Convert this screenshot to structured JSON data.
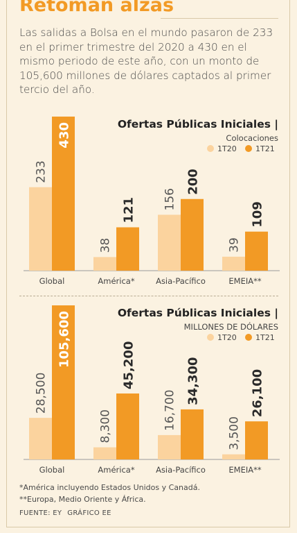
{
  "header": {
    "title": "Retoman alzas",
    "description": "Las salidas a Bolsa en el mundo pasaron de 233 en el primer trimestre del 2020 a 430 en el mismo periodo de este año, con un monto de 105,600 millones de dólares captados al primer tercio del año."
  },
  "colors": {
    "light": "#fbd39e",
    "dark": "#f29a25",
    "axis": "#9a9a9a",
    "text": "#3a3a3a"
  },
  "chart_data": [
    {
      "type": "bar",
      "title": "Ofertas Públicas Iniciales |",
      "subtitle": "Colocaciones",
      "categories": [
        "Global",
        "América*",
        "Asia-Pacífico",
        "EMEIA**"
      ],
      "series": [
        {
          "name": "1T20",
          "values": [
            233,
            38,
            156,
            39
          ],
          "labels": [
            "233",
            "38",
            "156",
            "39"
          ]
        },
        {
          "name": "1T21",
          "values": [
            430,
            121,
            200,
            109
          ],
          "labels": [
            "430",
            "121",
            "200",
            "109"
          ]
        }
      ],
      "ylim": [
        0,
        430
      ],
      "legend": "top-right"
    },
    {
      "type": "bar",
      "title": "Ofertas Públicas Iniciales |",
      "subtitle": "MILLONES DE DÓLARES",
      "categories": [
        "Global",
        "América*",
        "Asia-Pacífico",
        "EMEIA**"
      ],
      "series": [
        {
          "name": "1T20",
          "values": [
            28500,
            8300,
            16700,
            3500
          ],
          "labels": [
            "28,500",
            "8,300",
            "16,700",
            "3,500"
          ]
        },
        {
          "name": "1T21",
          "values": [
            105600,
            45200,
            34300,
            26100
          ],
          "labels": [
            "105,600",
            "45,200",
            "34,300",
            "26,100"
          ]
        }
      ],
      "ylim": [
        0,
        105600
      ],
      "legend": "top-right"
    }
  ],
  "footnotes": [
    "*América incluyendo Estados Unidos y Canadá.",
    "**Europa, Medio Oriente y África."
  ],
  "source": {
    "fuente": "FUENTE: EY",
    "grafico": "GRÁFICO EE"
  }
}
